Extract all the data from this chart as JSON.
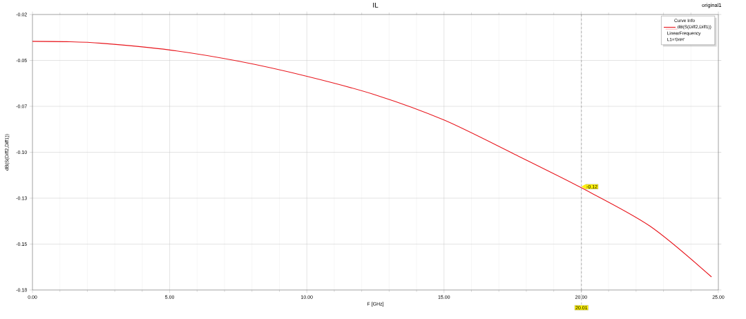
{
  "chart_data": {
    "type": "line",
    "title": "IL",
    "xlabel": "F [GHz]",
    "ylabel": "dB(S(Diff2,Diff1))",
    "legend_title": "Curve Info",
    "x": [
      0,
      1.25,
      2.5,
      5,
      7.5,
      10,
      12.5,
      15,
      17.5,
      20,
      22.5,
      24.75
    ],
    "series": [
      {
        "name": "dB(S(Diff2,Diff1))",
        "color": "#e8141b",
        "values": [
          -0.0356,
          -0.0358,
          -0.0367,
          -0.0406,
          -0.0471,
          -0.0559,
          -0.0667,
          -0.0813,
          -0.1006,
          -0.1206,
          -0.1428,
          -0.1724
        ]
      }
    ],
    "xlim": [
      0,
      25
    ],
    "ylim": [
      -0.18,
      -0.02
    ],
    "xticks": [
      {
        "value": 0,
        "label": "0.00"
      },
      {
        "value": 5,
        "label": "5.00"
      },
      {
        "value": 10,
        "label": "10.00"
      },
      {
        "value": 15,
        "label": "15.00"
      },
      {
        "value": 20,
        "label": "20.00"
      },
      {
        "value": 25,
        "label": "25.00"
      }
    ],
    "yticks": [
      {
        "value": -0.18,
        "label": "-0.18"
      },
      {
        "value": -0.15333,
        "label": "-0.15"
      },
      {
        "value": -0.12667,
        "label": "-0.13"
      },
      {
        "value": -0.1,
        "label": "-0.10"
      },
      {
        "value": -0.07333,
        "label": "-0.07"
      },
      {
        "value": -0.04667,
        "label": "-0.05"
      },
      {
        "value": -0.02,
        "label": "-0.02"
      }
    ],
    "ref_lines": [
      {
        "axis": "x",
        "value": 20.01,
        "label": "20.01",
        "line_style": "dashed"
      }
    ],
    "annotations": [
      "original1",
      "LinearFrequency",
      "L1='0nH'",
      {
        "text": "-0.12",
        "x": 20.01,
        "y": -0.12
      }
    ],
    "grid": true,
    "legend": "top right",
    "marker": "none",
    "line_style": "solid"
  }
}
